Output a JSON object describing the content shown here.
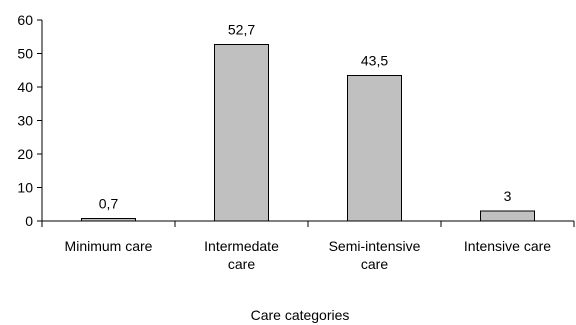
{
  "chart_data": {
    "type": "bar",
    "title": "",
    "xlabel": "Care categories",
    "ylabel": "",
    "ylim": [
      0,
      60
    ],
    "yticks": [
      "0",
      "10",
      "20",
      "30",
      "40",
      "50",
      "60"
    ],
    "ytick_values": [
      0,
      10,
      20,
      30,
      40,
      50,
      60
    ],
    "grid": false,
    "legend": "none",
    "bar_color": "#c0c0c0",
    "bar_edge_color": "#000000",
    "categories": [
      [
        "Minimum care"
      ],
      [
        "Intermedate",
        "care"
      ],
      [
        "Semi-intensive",
        "care"
      ],
      [
        "Intensive care"
      ]
    ],
    "values": [
      0.7,
      52.7,
      43.5,
      3
    ],
    "data_labels": [
      "0,7",
      "52,7",
      "43,5",
      "3"
    ]
  }
}
